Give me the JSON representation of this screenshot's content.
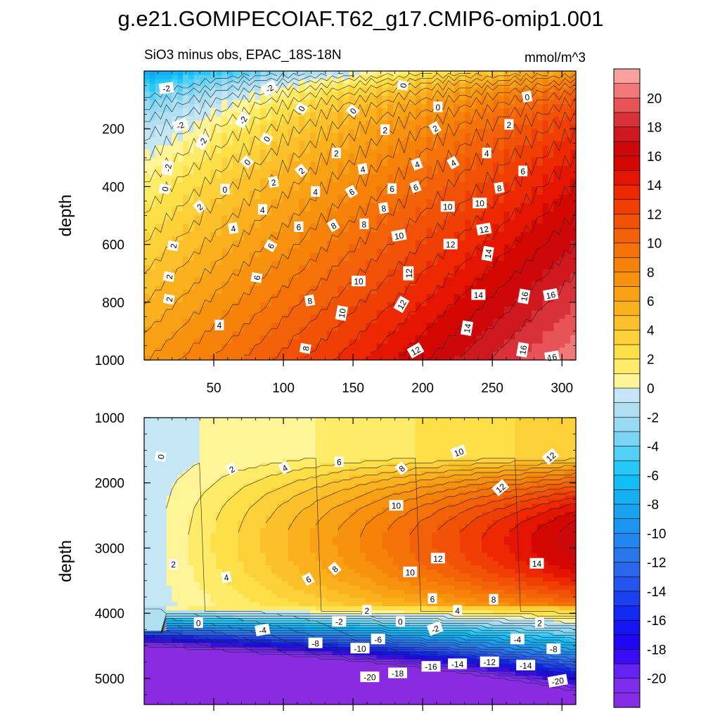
{
  "title": "g.e21.GOMIPECOIAF.T62_g17.CMIP6-omip1.001",
  "subtitle": "SiO3 minus obs, EPAC_18S-18N",
  "units": "mmol/m^3",
  "chart_data": {
    "type": "heatmap",
    "variable": "SiO3 minus obs",
    "region": "EPAC_18S-18N",
    "units": "mmol/m^3",
    "colorbar": {
      "levels": [
        -22,
        -21,
        -20,
        -19,
        -18,
        -17,
        -16,
        -15,
        -14,
        -13,
        -12,
        -11,
        -10,
        -9,
        -8,
        -7,
        -6,
        -5,
        -4,
        -3,
        -2,
        -1,
        0,
        1,
        2,
        3,
        4,
        5,
        6,
        7,
        8,
        9,
        10,
        11,
        12,
        13,
        14,
        15,
        16,
        17,
        18,
        19,
        20,
        21,
        22
      ],
      "tick_labels": [
        "20",
        "18",
        "16",
        "14",
        "12",
        "10",
        "8",
        "6",
        "4",
        "2",
        "0",
        "-2",
        "-4",
        "-6",
        "-8",
        "-10",
        "-12",
        "-14",
        "-16",
        "-18",
        "-20"
      ],
      "tick_values": [
        20,
        18,
        16,
        14,
        12,
        10,
        8,
        6,
        4,
        2,
        0,
        -2,
        -4,
        -6,
        -8,
        -10,
        -12,
        -14,
        -16,
        -18,
        -20
      ]
    },
    "panels": [
      {
        "name": "upper",
        "ylabel": "depth",
        "xlim": [
          0,
          310
        ],
        "ylim": [
          1000,
          0
        ],
        "x_ticks": [
          50,
          100,
          150,
          200,
          250,
          300
        ],
        "x_tick_labels": [
          "50",
          "100",
          "150",
          "200",
          "250",
          "300"
        ],
        "y_ticks": [
          200,
          400,
          600,
          800,
          1000
        ],
        "y_tick_labels": [
          "200",
          "400",
          "600",
          "800",
          "1000"
        ],
        "contour_labels": [
          {
            "x": 16,
            "y": 60,
            "v": "-2",
            "r": -8
          },
          {
            "x": 90,
            "y": 60,
            "v": "-2",
            "r": -30
          },
          {
            "x": 186,
            "y": 50,
            "v": "0",
            "r": -80
          },
          {
            "x": 275,
            "y": 90,
            "v": "0",
            "r": -10
          },
          {
            "x": 113,
            "y": 130,
            "v": "0",
            "r": -60
          },
          {
            "x": 150,
            "y": 138,
            "v": "0",
            "r": -50
          },
          {
            "x": 211,
            "y": 125,
            "v": "0",
            "r": 0
          },
          {
            "x": 26,
            "y": 188,
            "v": "-2",
            "r": -20
          },
          {
            "x": 71,
            "y": 170,
            "v": "-2",
            "r": -60
          },
          {
            "x": 42,
            "y": 245,
            "v": "-2",
            "r": -60
          },
          {
            "x": 88,
            "y": 235,
            "v": "0",
            "r": -60
          },
          {
            "x": 173,
            "y": 204,
            "v": "2",
            "r": 0
          },
          {
            "x": 209,
            "y": 198,
            "v": "2",
            "r": -30
          },
          {
            "x": 262,
            "y": 186,
            "v": "2",
            "r": 0
          },
          {
            "x": 17,
            "y": 335,
            "v": "-2",
            "r": -80
          },
          {
            "x": 74,
            "y": 315,
            "v": "0",
            "r": -50
          },
          {
            "x": 138,
            "y": 285,
            "v": "2",
            "r": 0
          },
          {
            "x": 113,
            "y": 345,
            "v": "2",
            "r": -40
          },
          {
            "x": 157,
            "y": 340,
            "v": "4",
            "r": -10
          },
          {
            "x": 196,
            "y": 323,
            "v": "4",
            "r": -20
          },
          {
            "x": 222,
            "y": 318,
            "v": "4",
            "r": -30
          },
          {
            "x": 246,
            "y": 285,
            "v": "4",
            "r": 0
          },
          {
            "x": 272,
            "y": 347,
            "v": "6",
            "r": 0
          },
          {
            "x": 15,
            "y": 408,
            "v": "0",
            "r": -80
          },
          {
            "x": 58,
            "y": 410,
            "v": "0",
            "r": 0
          },
          {
            "x": 93,
            "y": 385,
            "v": "2",
            "r": -10
          },
          {
            "x": 123,
            "y": 418,
            "v": "4",
            "r": 0
          },
          {
            "x": 149,
            "y": 418,
            "v": "6",
            "r": -30
          },
          {
            "x": 178,
            "y": 408,
            "v": "6",
            "r": 0
          },
          {
            "x": 195,
            "y": 402,
            "v": "6",
            "r": -20
          },
          {
            "x": 255,
            "y": 405,
            "v": "8",
            "r": -10
          },
          {
            "x": 40,
            "y": 470,
            "v": "2",
            "r": -40
          },
          {
            "x": 85,
            "y": 480,
            "v": "4",
            "r": 0
          },
          {
            "x": 172,
            "y": 475,
            "v": "8",
            "r": -10
          },
          {
            "x": 218,
            "y": 470,
            "v": "10",
            "r": 0
          },
          {
            "x": 241,
            "y": 458,
            "v": "10",
            "r": 0
          },
          {
            "x": 64,
            "y": 545,
            "v": "4",
            "r": -10
          },
          {
            "x": 111,
            "y": 540,
            "v": "6",
            "r": 0
          },
          {
            "x": 136,
            "y": 535,
            "v": "8",
            "r": -30
          },
          {
            "x": 158,
            "y": 530,
            "v": "8",
            "r": 0
          },
          {
            "x": 183,
            "y": 570,
            "v": "10",
            "r": -10
          },
          {
            "x": 244,
            "y": 548,
            "v": "12",
            "r": -10
          },
          {
            "x": 21,
            "y": 605,
            "v": "2",
            "r": -80
          },
          {
            "x": 91,
            "y": 605,
            "v": "6",
            "r": -60
          },
          {
            "x": 220,
            "y": 600,
            "v": "12",
            "r": 0
          },
          {
            "x": 247,
            "y": 632,
            "v": "14",
            "r": -80
          },
          {
            "x": 190,
            "y": 700,
            "v": "12",
            "r": -90
          },
          {
            "x": 154,
            "y": 728,
            "v": "10",
            "r": 0
          },
          {
            "x": 18,
            "y": 712,
            "v": "2",
            "r": -80
          },
          {
            "x": 81,
            "y": 715,
            "v": "6",
            "r": -80
          },
          {
            "x": 119,
            "y": 795,
            "v": "8",
            "r": -10
          },
          {
            "x": 240,
            "y": 775,
            "v": "14",
            "r": 0
          },
          {
            "x": 273,
            "y": 780,
            "v": "16",
            "r": -80
          },
          {
            "x": 292,
            "y": 775,
            "v": "16",
            "r": -10
          },
          {
            "x": 185,
            "y": 808,
            "v": "12",
            "r": -60
          },
          {
            "x": 18,
            "y": 790,
            "v": "2",
            "r": -80
          },
          {
            "x": 142,
            "y": 838,
            "v": "10",
            "r": -80
          },
          {
            "x": 54,
            "y": 880,
            "v": "4",
            "r": 0
          },
          {
            "x": 232,
            "y": 890,
            "v": "14",
            "r": -80
          },
          {
            "x": 116,
            "y": 960,
            "v": "8",
            "r": -80
          },
          {
            "x": 195,
            "y": 968,
            "v": "12",
            "r": -30
          },
          {
            "x": 272,
            "y": 965,
            "v": "16",
            "r": -80
          },
          {
            "x": 293,
            "y": 990,
            "v": "16",
            "r": -10
          }
        ]
      },
      {
        "name": "lower",
        "ylabel": "depth",
        "xlim": [
          0,
          310
        ],
        "ylim": [
          5400,
          1000
        ],
        "y_ticks": [
          1000,
          2000,
          3000,
          4000,
          5000
        ],
        "y_tick_labels": [
          "1000",
          "2000",
          "3000",
          "4000",
          "5000"
        ],
        "contour_labels": [
          {
            "x": 12,
            "y": 1600,
            "v": "0",
            "r": -80
          },
          {
            "x": 63,
            "y": 1790,
            "v": "2",
            "r": -30
          },
          {
            "x": 101,
            "y": 1770,
            "v": "4",
            "r": -30
          },
          {
            "x": 140,
            "y": 1680,
            "v": "6",
            "r": 0
          },
          {
            "x": 185,
            "y": 1780,
            "v": "8",
            "r": -40
          },
          {
            "x": 226,
            "y": 1530,
            "v": "10",
            "r": -20
          },
          {
            "x": 292,
            "y": 1600,
            "v": "12",
            "r": -40
          },
          {
            "x": 256,
            "y": 2080,
            "v": "12",
            "r": -40
          },
          {
            "x": 181,
            "y": 2350,
            "v": "10",
            "r": 0
          },
          {
            "x": 21,
            "y": 3250,
            "v": "2",
            "r": 0
          },
          {
            "x": 59,
            "y": 3450,
            "v": "4",
            "r": -10
          },
          {
            "x": 118,
            "y": 3480,
            "v": "6",
            "r": -30
          },
          {
            "x": 137,
            "y": 3320,
            "v": "8",
            "r": -40
          },
          {
            "x": 191,
            "y": 3370,
            "v": "10",
            "r": 0
          },
          {
            "x": 211,
            "y": 3160,
            "v": "12",
            "r": 0
          },
          {
            "x": 282,
            "y": 3240,
            "v": "14",
            "r": 0
          },
          {
            "x": 207,
            "y": 3780,
            "v": "6",
            "r": 0
          },
          {
            "x": 160,
            "y": 3960,
            "v": "2",
            "r": 0
          },
          {
            "x": 225,
            "y": 3960,
            "v": "4",
            "r": 0
          },
          {
            "x": 251,
            "y": 3790,
            "v": "8",
            "r": 0
          },
          {
            "x": 39,
            "y": 4150,
            "v": "0",
            "r": 0
          },
          {
            "x": 140,
            "y": 4130,
            "v": "-2",
            "r": 0
          },
          {
            "x": 184,
            "y": 4130,
            "v": "0",
            "r": 0
          },
          {
            "x": 209,
            "y": 4240,
            "v": "-2",
            "r": -20
          },
          {
            "x": 284,
            "y": 4150,
            "v": "2",
            "r": 0
          },
          {
            "x": 85,
            "y": 4260,
            "v": "-4",
            "r": -10
          },
          {
            "x": 123,
            "y": 4460,
            "v": "-8",
            "r": 0
          },
          {
            "x": 155,
            "y": 4540,
            "v": "-10",
            "r": 0
          },
          {
            "x": 168,
            "y": 4400,
            "v": "-6",
            "r": 0
          },
          {
            "x": 268,
            "y": 4400,
            "v": "-4",
            "r": 0
          },
          {
            "x": 294,
            "y": 4550,
            "v": "-8",
            "r": 0
          },
          {
            "x": 162,
            "y": 4980,
            "v": "-20",
            "r": 0
          },
          {
            "x": 182,
            "y": 4920,
            "v": "-18",
            "r": 0
          },
          {
            "x": 206,
            "y": 4820,
            "v": "-16",
            "r": 0
          },
          {
            "x": 225,
            "y": 4780,
            "v": "-14",
            "r": 0
          },
          {
            "x": 248,
            "y": 4750,
            "v": "-12",
            "r": 0
          },
          {
            "x": 274,
            "y": 4800,
            "v": "-14",
            "r": 0
          },
          {
            "x": 297,
            "y": 5040,
            "v": "-20",
            "r": -10
          }
        ]
      }
    ]
  }
}
